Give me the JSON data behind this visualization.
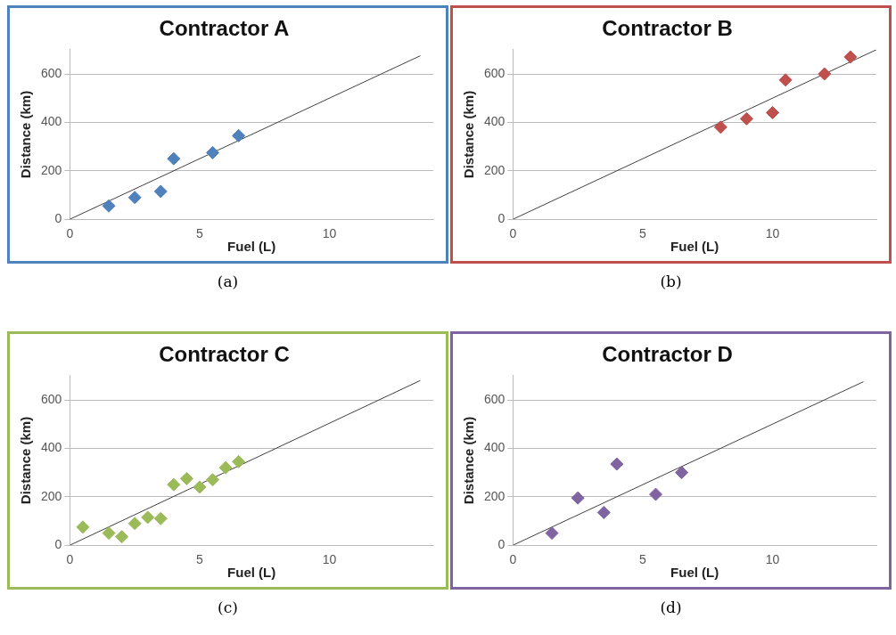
{
  "chart_data": [
    {
      "type": "scatter",
      "title": "Contractor A",
      "xlabel": "Fuel (L)",
      "ylabel": "Distance (km)",
      "xlim": [
        0,
        14
      ],
      "xticks": [
        0,
        5,
        10
      ],
      "ylim": [
        0,
        700
      ],
      "yticks": [
        0,
        200,
        400,
        600
      ],
      "grid": "y",
      "legend": false,
      "marker": "diamond",
      "annotations": [
        "(a)"
      ],
      "series": [
        {
          "color": "#4f81bd",
          "x": [
            1.5,
            2.5,
            3.5,
            4,
            5.5,
            6.5
          ],
          "values": [
            55,
            90,
            115,
            250,
            275,
            345
          ]
        },
        {
          "type": "line",
          "color": "#404040",
          "marker": "none",
          "x": [
            0,
            13.5
          ],
          "values": [
            0,
            675
          ]
        }
      ]
    },
    {
      "type": "scatter",
      "title": "Contractor B",
      "xlabel": "Fuel (L)",
      "ylabel": "Distance (km)",
      "xlim": [
        0,
        14
      ],
      "xticks": [
        0,
        5,
        10
      ],
      "ylim": [
        0,
        700
      ],
      "yticks": [
        0,
        200,
        400,
        600
      ],
      "grid": "y",
      "legend": false,
      "marker": "diamond",
      "annotations": [
        "(b)"
      ],
      "series": [
        {
          "color": "#c0504d",
          "x": [
            8,
            9,
            10,
            10.5,
            12,
            13
          ],
          "values": [
            380,
            415,
            440,
            575,
            600,
            670
          ]
        },
        {
          "type": "line",
          "color": "#404040",
          "marker": "none",
          "x": [
            0,
            14
          ],
          "values": [
            0,
            700
          ]
        }
      ]
    },
    {
      "type": "scatter",
      "title": "Contractor C",
      "xlabel": "Fuel (L)",
      "ylabel": "Distance (km)",
      "xlim": [
        0,
        14
      ],
      "xticks": [
        0,
        5,
        10
      ],
      "ylim": [
        0,
        700
      ],
      "yticks": [
        0,
        200,
        400,
        600
      ],
      "grid": "y",
      "legend": false,
      "marker": "diamond",
      "annotations": [
        "(c)"
      ],
      "series": [
        {
          "color": "#9bbb59",
          "x": [
            0.5,
            1.5,
            2,
            2.5,
            3,
            3.5,
            4,
            4.5,
            5,
            5.5,
            6,
            6.5
          ],
          "values": [
            75,
            50,
            35,
            90,
            115,
            110,
            250,
            275,
            240,
            270,
            320,
            345
          ]
        },
        {
          "type": "line",
          "color": "#404040",
          "marker": "none",
          "x": [
            0,
            13.5
          ],
          "values": [
            0,
            680
          ]
        }
      ]
    },
    {
      "type": "scatter",
      "title": "Contractor D",
      "xlabel": "Fuel (L)",
      "ylabel": "Distance (km)",
      "xlim": [
        0,
        14
      ],
      "xticks": [
        0,
        5,
        10
      ],
      "ylim": [
        0,
        700
      ],
      "yticks": [
        0,
        200,
        400,
        600
      ],
      "grid": "y",
      "legend": false,
      "marker": "diamond",
      "annotations": [
        "(d)"
      ],
      "series": [
        {
          "color": "#8064a2",
          "x": [
            1.5,
            2.5,
            3.5,
            4,
            5.5,
            6.5
          ],
          "values": [
            50,
            195,
            135,
            335,
            210,
            300
          ]
        },
        {
          "type": "line",
          "color": "#404040",
          "marker": "none",
          "x": [
            0,
            13.5
          ],
          "values": [
            0,
            675
          ]
        }
      ]
    }
  ]
}
